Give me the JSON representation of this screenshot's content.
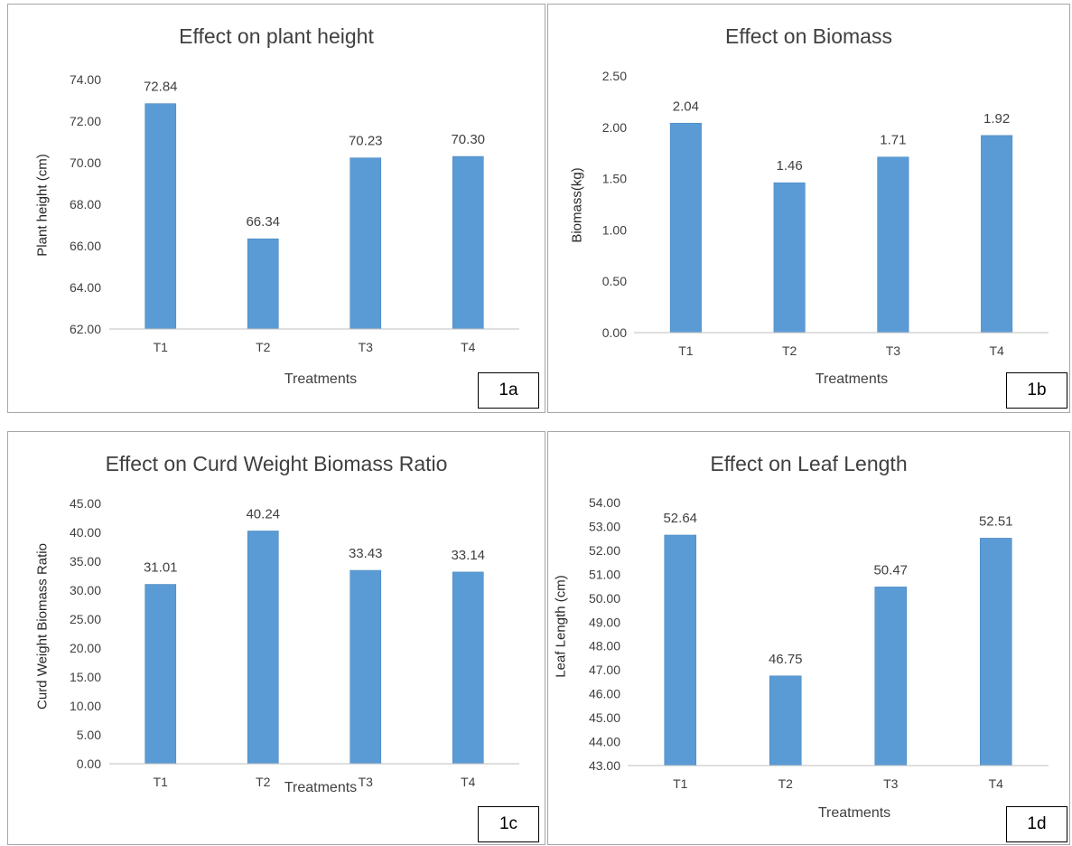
{
  "chart_data": [
    {
      "type": "bar",
      "title": "Effect on plant height",
      "xlabel": "Treatments",
      "ylabel": "Plant height (cm)",
      "categories": [
        "T1",
        "T2",
        "T3",
        "T4"
      ],
      "values": [
        72.84,
        66.34,
        70.23,
        70.3
      ],
      "data_labels": [
        "72.84",
        "66.34",
        "70.23",
        "70.30"
      ],
      "yticks": [
        "62.00",
        "64.00",
        "66.00",
        "68.00",
        "70.00",
        "72.00",
        "74.00"
      ],
      "ylim": [
        62,
        74
      ],
      "panel_label": "1a",
      "bar_color": "#5b9bd5",
      "grid": false
    },
    {
      "type": "bar",
      "title": "Effect on Biomass",
      "xlabel": "Treatments",
      "ylabel": "Biomass(kg)",
      "categories": [
        "T1",
        "T2",
        "T3",
        "T4"
      ],
      "values": [
        2.04,
        1.46,
        1.71,
        1.92
      ],
      "data_labels": [
        "2.04",
        "1.46",
        "1.71",
        "1.92"
      ],
      "yticks": [
        "0.00",
        "0.50",
        "1.00",
        "1.50",
        "2.00",
        "2.50"
      ],
      "ylim": [
        0,
        2.5
      ],
      "panel_label": "1b",
      "bar_color": "#5b9bd5",
      "grid": false
    },
    {
      "type": "bar",
      "title": "Effect on Curd Weight Biomass Ratio",
      "xlabel": "Treatments",
      "ylabel": "Curd Weight Biomass Ratio",
      "categories": [
        "T1",
        "T2",
        "T3",
        "T4"
      ],
      "values": [
        31.01,
        40.24,
        33.43,
        33.14
      ],
      "data_labels": [
        "31.01",
        "40.24",
        "33.43",
        "33.14"
      ],
      "yticks": [
        "0.00",
        "5.00",
        "10.00",
        "15.00",
        "20.00",
        "25.00",
        "30.00",
        "35.00",
        "40.00",
        "45.00"
      ],
      "ylim": [
        0,
        45
      ],
      "panel_label": "1c",
      "bar_color": "#5b9bd5",
      "grid": false
    },
    {
      "type": "bar",
      "title": "Effect on Leaf Length",
      "xlabel": "Treatments",
      "ylabel": "Leaf Length (cm)",
      "categories": [
        "T1",
        "T2",
        "T3",
        "T4"
      ],
      "values": [
        52.64,
        46.75,
        50.47,
        52.51
      ],
      "data_labels": [
        "52.64",
        "46.75",
        "50.47",
        "52.51"
      ],
      "yticks": [
        "43.00",
        "44.00",
        "45.00",
        "46.00",
        "47.00",
        "48.00",
        "49.00",
        "50.00",
        "51.00",
        "52.00",
        "53.00",
        "54.00"
      ],
      "ylim": [
        43,
        54
      ],
      "panel_label": "1d",
      "bar_color": "#5b9bd5",
      "grid": false
    }
  ]
}
